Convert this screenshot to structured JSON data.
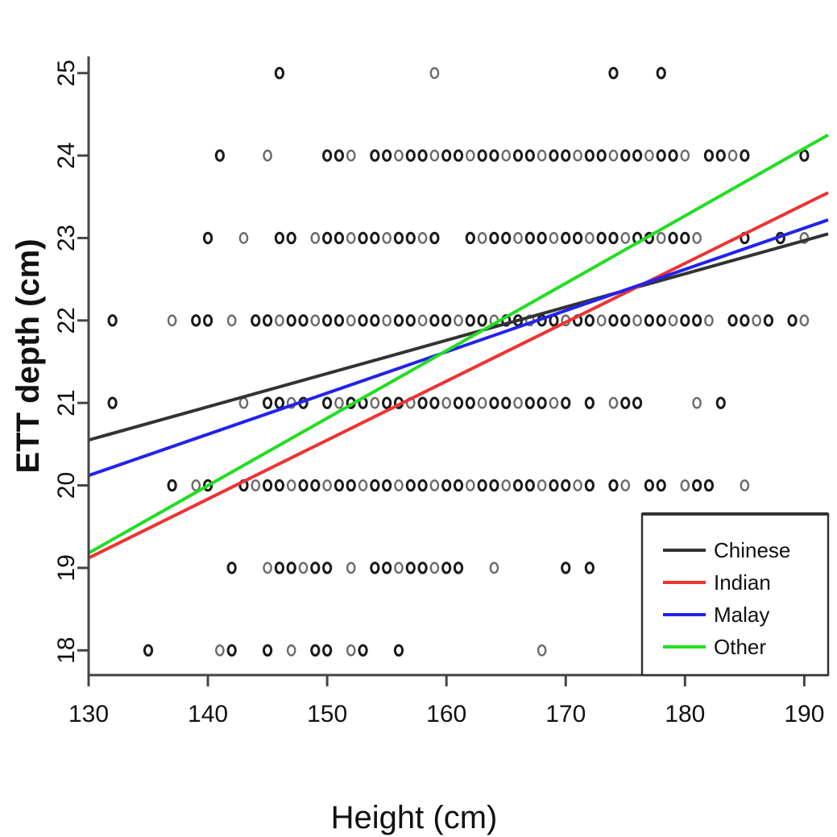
{
  "chart_data": {
    "type": "scatter",
    "title": "",
    "xlabel": "Height (cm)",
    "ylabel": "ETT depth (cm)",
    "xlim": [
      130,
      192
    ],
    "ylim": [
      17.7,
      25.3
    ],
    "x_ticks": [
      130,
      140,
      150,
      160,
      170,
      180,
      190
    ],
    "y_ticks": [
      18,
      19,
      20,
      21,
      22,
      23,
      24,
      25
    ],
    "grid": false,
    "legend_position": "bottom-right",
    "points": [
      {
        "y": 25,
        "x": [
          146,
          159,
          174,
          178
        ]
      },
      {
        "y": 24,
        "x": [
          141,
          145,
          150,
          151,
          152,
          154,
          155,
          156,
          157,
          158,
          159,
          160,
          161,
          162,
          163,
          164,
          165,
          166,
          167,
          168,
          169,
          170,
          171,
          172,
          173,
          174,
          175,
          176,
          177,
          178,
          179,
          180,
          182,
          183,
          184,
          185,
          190
        ]
      },
      {
        "y": 23,
        "x": [
          140,
          143,
          146,
          147,
          149,
          150,
          151,
          152,
          153,
          154,
          155,
          156,
          157,
          158,
          159,
          162,
          163,
          164,
          165,
          166,
          167,
          168,
          169,
          170,
          171,
          172,
          173,
          174,
          175,
          176,
          177,
          178,
          179,
          180,
          181,
          185,
          188,
          190
        ]
      },
      {
        "y": 22,
        "x": [
          132,
          137,
          139,
          140,
          142,
          144,
          145,
          146,
          147,
          148,
          149,
          150,
          151,
          152,
          153,
          154,
          155,
          156,
          157,
          158,
          159,
          160,
          161,
          162,
          163,
          164,
          165,
          166,
          167,
          168,
          169,
          170,
          171,
          172,
          173,
          174,
          175,
          176,
          177,
          178,
          179,
          180,
          181,
          182,
          184,
          185,
          186,
          187,
          189,
          190
        ]
      },
      {
        "y": 21,
        "x": [
          132,
          143,
          145,
          146,
          147,
          148,
          150,
          151,
          152,
          153,
          154,
          155,
          156,
          157,
          158,
          159,
          160,
          161,
          162,
          163,
          164,
          165,
          166,
          167,
          168,
          169,
          170,
          172,
          174,
          175,
          176,
          181,
          183
        ]
      },
      {
        "y": 20,
        "x": [
          137,
          139,
          140,
          143,
          144,
          145,
          146,
          147,
          148,
          149,
          150,
          151,
          152,
          153,
          154,
          155,
          156,
          157,
          158,
          159,
          160,
          161,
          162,
          163,
          164,
          165,
          166,
          167,
          168,
          169,
          170,
          171,
          172,
          174,
          175,
          177,
          178,
          180,
          181,
          182,
          185
        ]
      },
      {
        "y": 19,
        "x": [
          142,
          145,
          146,
          147,
          148,
          149,
          150,
          152,
          154,
          155,
          156,
          157,
          158,
          159,
          160,
          161,
          164,
          170,
          172
        ]
      },
      {
        "y": 18,
        "x": [
          135,
          141,
          142,
          145,
          147,
          149,
          150,
          152,
          153,
          156,
          168
        ]
      }
    ],
    "series": [
      {
        "name": "Chinese",
        "color": "#333333",
        "x": [
          130,
          192
        ],
        "y": [
          20.55,
          23.05
        ]
      },
      {
        "name": "Indian",
        "color": "#ee3333",
        "x": [
          130,
          192
        ],
        "y": [
          19.12,
          23.55
        ]
      },
      {
        "name": "Malay",
        "color": "#2222ee",
        "x": [
          130,
          192
        ],
        "y": [
          20.12,
          23.22
        ]
      },
      {
        "name": "Other",
        "color": "#22dd22",
        "x": [
          130,
          192
        ],
        "y": [
          19.18,
          24.25
        ]
      }
    ]
  }
}
